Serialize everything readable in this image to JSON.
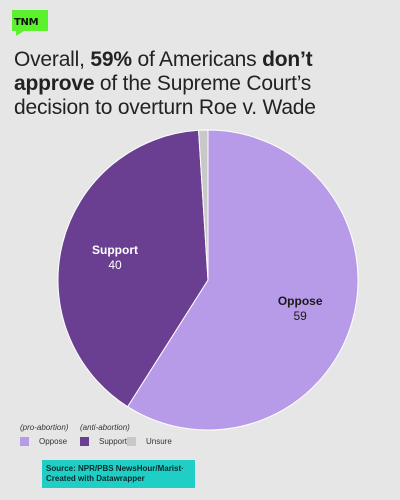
{
  "brand": {
    "logo_text": "TNM",
    "accent": "#5cf12d"
  },
  "title": {
    "part1": "Overall, ",
    "bold1": "59% ",
    "part2": "of Americans ",
    "bold2": "don’t approve",
    "part3": " of the Supreme Court’s decision to overturn Roe v. Wade"
  },
  "chart_data": {
    "type": "pie",
    "slices": [
      {
        "label": "Oppose",
        "value": 59,
        "color": "#b79ae8"
      },
      {
        "label": "Support",
        "value": 40,
        "color": "#6a3f91"
      },
      {
        "label": "Unsure",
        "value": 1,
        "color": "#c8c8c8"
      }
    ],
    "annotations": [
      "(pro-abortion)",
      "(anti-abortion)"
    ]
  },
  "legend": [
    {
      "label": "Oppose",
      "color": "#b79ae8"
    },
    {
      "label": "Support",
      "color": "#6a3f91"
    },
    {
      "label": "Unsure",
      "color": "#c8c8c8"
    }
  ],
  "source": {
    "line1": "Source: NPR/PBS NewsHour/Marist·",
    "line2": "Created with Datawrapper"
  }
}
